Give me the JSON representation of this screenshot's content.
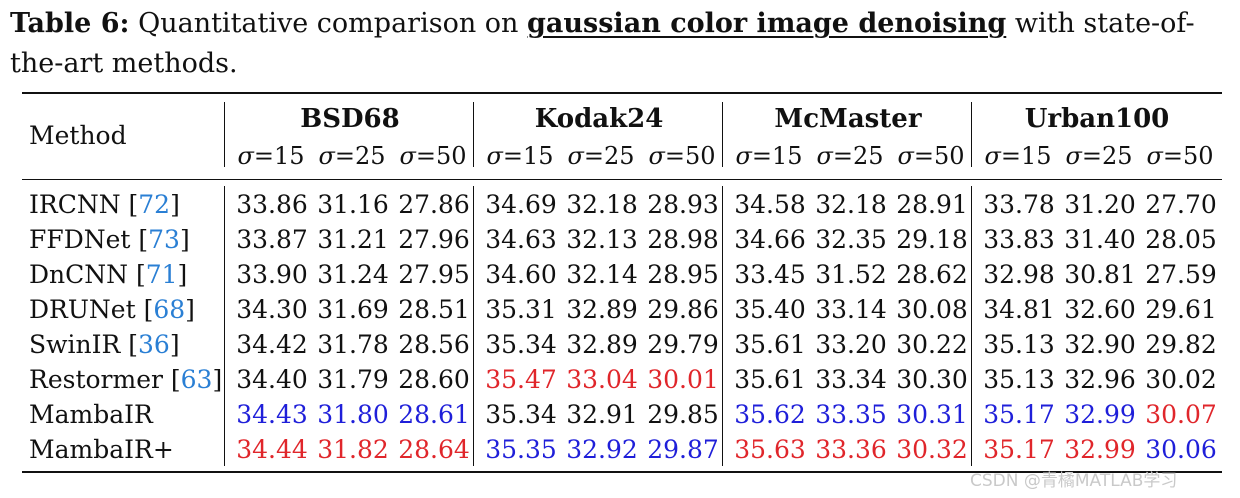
{
  "caption": {
    "label": "Table 6:",
    "text_before": " Quantitative comparison on ",
    "highlight": "gaussian color image denoising",
    "text_after": " with state-of-the-art methods."
  },
  "table": {
    "method_header": "Method",
    "datasets": [
      "BSD68",
      "Kodak24",
      "McMaster",
      "Urban100"
    ],
    "sigma_symbol": "σ",
    "sigma_levels": [
      "=15",
      "=25",
      "=50"
    ],
    "colors": {
      "best": "#e0262b",
      "second": "#1f1fd9",
      "cite": "#2a7fd4"
    },
    "rows": [
      {
        "method": "IRCNN",
        "cite": "72",
        "values": [
          "33.86",
          "31.16",
          "27.86",
          "34.69",
          "32.18",
          "28.93",
          "34.58",
          "32.18",
          "28.91",
          "33.78",
          "31.20",
          "27.70"
        ],
        "rank": [
          "",
          "",
          "",
          "",
          "",
          "",
          "",
          "",
          "",
          "",
          "",
          ""
        ]
      },
      {
        "method": "FFDNet",
        "cite": "73",
        "values": [
          "33.87",
          "31.21",
          "27.96",
          "34.63",
          "32.13",
          "28.98",
          "34.66",
          "32.35",
          "29.18",
          "33.83",
          "31.40",
          "28.05"
        ],
        "rank": [
          "",
          "",
          "",
          "",
          "",
          "",
          "",
          "",
          "",
          "",
          "",
          ""
        ]
      },
      {
        "method": "DnCNN",
        "cite": "71",
        "values": [
          "33.90",
          "31.24",
          "27.95",
          "34.60",
          "32.14",
          "28.95",
          "33.45",
          "31.52",
          "28.62",
          "32.98",
          "30.81",
          "27.59"
        ],
        "rank": [
          "",
          "",
          "",
          "",
          "",
          "",
          "",
          "",
          "",
          "",
          "",
          ""
        ]
      },
      {
        "method": "DRUNet",
        "cite": "68",
        "values": [
          "34.30",
          "31.69",
          "28.51",
          "35.31",
          "32.89",
          "29.86",
          "35.40",
          "33.14",
          "30.08",
          "34.81",
          "32.60",
          "29.61"
        ],
        "rank": [
          "",
          "",
          "",
          "",
          "",
          "",
          "",
          "",
          "",
          "",
          "",
          ""
        ]
      },
      {
        "method": "SwinIR",
        "cite": "36",
        "values": [
          "34.42",
          "31.78",
          "28.56",
          "35.34",
          "32.89",
          "29.79",
          "35.61",
          "33.20",
          "30.22",
          "35.13",
          "32.90",
          "29.82"
        ],
        "rank": [
          "",
          "",
          "",
          "",
          "",
          "",
          "",
          "",
          "",
          "",
          "",
          ""
        ]
      },
      {
        "method": "Restormer",
        "cite": "63",
        "values": [
          "34.40",
          "31.79",
          "28.60",
          "35.47",
          "33.04",
          "30.01",
          "35.61",
          "33.34",
          "30.30",
          "35.13",
          "32.96",
          "30.02"
        ],
        "rank": [
          "",
          "",
          "",
          "red",
          "red",
          "red",
          "",
          "",
          "",
          "",
          "",
          ""
        ]
      },
      {
        "method": "MambaIR",
        "cite": "",
        "values": [
          "34.43",
          "31.80",
          "28.61",
          "35.34",
          "32.91",
          "29.85",
          "35.62",
          "33.35",
          "30.31",
          "35.17",
          "32.99",
          "30.07"
        ],
        "rank": [
          "blue",
          "blue",
          "blue",
          "",
          "",
          "",
          "blue",
          "blue",
          "blue",
          "blue",
          "blue",
          "red"
        ]
      },
      {
        "method": "MambaIR+",
        "cite": "",
        "values": [
          "34.44",
          "31.82",
          "28.64",
          "35.35",
          "32.92",
          "29.87",
          "35.63",
          "33.36",
          "30.32",
          "35.17",
          "32.99",
          "30.06"
        ],
        "rank": [
          "red",
          "red",
          "red",
          "blue",
          "blue",
          "blue",
          "red",
          "red",
          "red",
          "red",
          "red",
          "blue"
        ]
      }
    ]
  },
  "watermark": "CSDN @青橘MATLAB学习"
}
